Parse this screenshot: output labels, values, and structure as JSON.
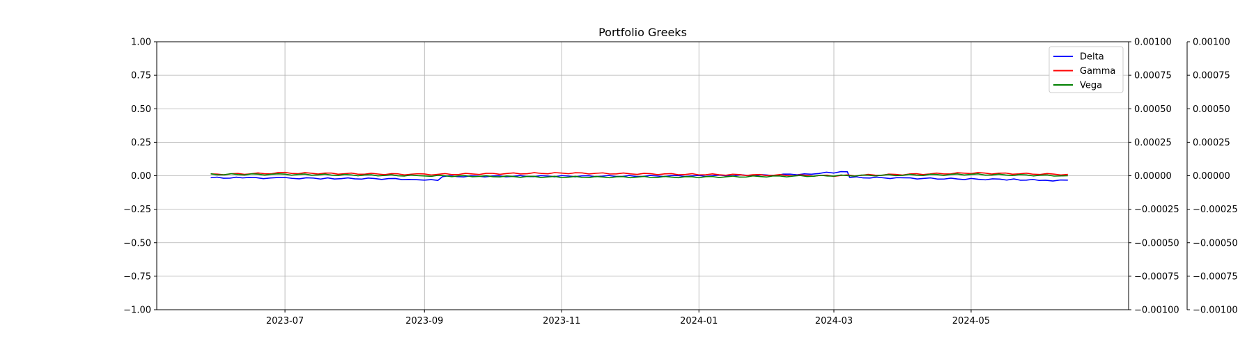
{
  "chart_data": {
    "type": "line",
    "title": "Portfolio Greeks",
    "xlabel": "",
    "ylabel": "",
    "x_axis": {
      "kind": "date",
      "range": [
        "2023-05-05",
        "2024-07-10"
      ],
      "ticks": [
        "2023-07-01",
        "2023-09-01",
        "2023-11-01",
        "2024-01-01",
        "2024-03-01",
        "2024-05-01"
      ],
      "tick_labels": [
        "2023-07",
        "2023-09",
        "2023-11",
        "2024-01",
        "2024-03",
        "2024-05"
      ]
    },
    "y_left": {
      "range": [
        -1,
        1
      ],
      "ticks": [
        1,
        0.75,
        0.5,
        0.25,
        0,
        -0.25,
        -0.5,
        -0.75,
        -1
      ],
      "tick_labels": [
        "1.00",
        "0.75",
        "0.50",
        "0.25",
        "0.00",
        "−0.25",
        "−0.50",
        "−0.75",
        "−1.00"
      ]
    },
    "y_right1": {
      "range": [
        -0.001,
        0.001
      ],
      "ticks": [
        0.001,
        0.00075,
        0.0005,
        0.00025,
        0,
        -0.00025,
        -0.0005,
        -0.00075,
        -0.001
      ],
      "tick_labels": [
        "0.00100",
        "0.00075",
        "0.00050",
        "0.00025",
        "0.00000",
        "−0.00025",
        "−0.00050",
        "−0.00075",
        "−0.00100"
      ]
    },
    "y_right2": {
      "range": [
        -0.001,
        0.001
      ],
      "ticks": [
        0.001,
        0.00075,
        0.0005,
        0.00025,
        0,
        -0.00025,
        -0.0005,
        -0.00075,
        -0.001
      ],
      "tick_labels": [
        "0.00100",
        "0.00075",
        "0.00050",
        "0.00025",
        "0.00000",
        "−0.00025",
        "−0.00050",
        "−0.00075",
        "−0.00100"
      ]
    },
    "grid": true,
    "legend": {
      "placement": "top-right"
    },
    "series": [
      {
        "name": "Delta",
        "color": "#0000ff",
        "axis": "left",
        "x": [
          "2023-05-29",
          "2023-06-15",
          "2023-07-01",
          "2023-07-20",
          "2023-08-10",
          "2023-08-25",
          "2023-09-01",
          "2023-09-07",
          "2023-09-09",
          "2023-10-01",
          "2023-11-01",
          "2023-12-01",
          "2024-01-01",
          "2024-02-01",
          "2024-02-20",
          "2024-03-01",
          "2024-03-07",
          "2024-03-08",
          "2024-04-01",
          "2024-05-01",
          "2024-05-20",
          "2024-06-03",
          "2024-06-13"
        ],
        "values": [
          -0.015,
          -0.016,
          -0.018,
          -0.02,
          -0.022,
          -0.025,
          -0.028,
          -0.03,
          -0.005,
          -0.004,
          -0.003,
          -0.003,
          -0.001,
          0.005,
          0.015,
          0.025,
          0.033,
          -0.012,
          -0.018,
          -0.025,
          -0.028,
          -0.035,
          -0.033
        ]
      },
      {
        "name": "Gamma",
        "color": "#ff0000",
        "axis": "right1",
        "x": [
          "2023-05-29",
          "2023-07-01",
          "2023-09-01",
          "2023-11-01",
          "2024-01-01",
          "2024-03-01",
          "2024-05-01",
          "2024-06-13"
        ],
        "values": [
          1e-05,
          2e-05,
          1e-05,
          2e-05,
          1e-05,
          0.0,
          2e-05,
          1e-05
        ]
      },
      {
        "name": "Vega",
        "color": "#008000",
        "axis": "right2",
        "x": [
          "2023-05-29",
          "2023-07-01",
          "2023-09-01",
          "2023-11-01",
          "2024-01-01",
          "2024-03-01",
          "2024-05-01",
          "2024-06-13"
        ],
        "values": [
          1e-05,
          1e-05,
          0.0,
          -1e-05,
          -1e-05,
          0.0,
          1e-05,
          0.0
        ]
      }
    ]
  }
}
